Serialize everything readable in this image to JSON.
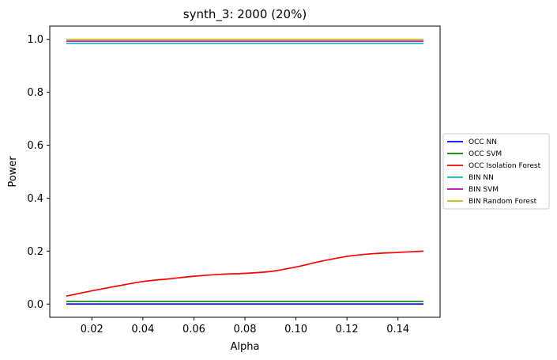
{
  "chart_data": {
    "type": "line",
    "title": "synth_3: 2000 (20%)",
    "xlabel": "Alpha",
    "ylabel": "Power",
    "xlim": [
      0.0035,
      0.1565
    ],
    "ylim": [
      -0.05,
      1.05
    ],
    "xticks": [
      0.02,
      0.04,
      0.06,
      0.08,
      0.1,
      0.12,
      0.14
    ],
    "xtick_labels": [
      "0.02",
      "0.04",
      "0.06",
      "0.08",
      "0.10",
      "0.12",
      "0.14"
    ],
    "yticks": [
      0.0,
      0.2,
      0.4,
      0.6,
      0.8,
      1.0
    ],
    "ytick_labels": [
      "0.0",
      "0.2",
      "0.4",
      "0.6",
      "0.8",
      "1.0"
    ],
    "grid": false,
    "legend_position": "center-right outside",
    "x": [
      0.01,
      0.02,
      0.03,
      0.04,
      0.05,
      0.06,
      0.07,
      0.08,
      0.09,
      0.1,
      0.11,
      0.12,
      0.13,
      0.14,
      0.15
    ],
    "series": [
      {
        "name": "OCC NN",
        "color": "#0000ff",
        "values": [
          0.0,
          0.0,
          0.0,
          0.0,
          0.0,
          0.0,
          0.0,
          0.0,
          0.0,
          0.0,
          0.0,
          0.0,
          0.0,
          0.0,
          0.0
        ]
      },
      {
        "name": "OCC SVM",
        "color": "#008000",
        "values": [
          0.01,
          0.01,
          0.01,
          0.01,
          0.01,
          0.01,
          0.01,
          0.01,
          0.01,
          0.01,
          0.01,
          0.01,
          0.01,
          0.01,
          0.01
        ]
      },
      {
        "name": "OCC Isolation Forest",
        "color": "#ff0000",
        "values": [
          0.03,
          0.05,
          0.068,
          0.085,
          0.095,
          0.105,
          0.112,
          0.116,
          0.123,
          0.14,
          0.162,
          0.18,
          0.19,
          0.195,
          0.2
        ]
      },
      {
        "name": "BIN NN",
        "color": "#00bfbf",
        "values": [
          0.985,
          0.985,
          0.985,
          0.985,
          0.985,
          0.985,
          0.985,
          0.985,
          0.985,
          0.985,
          0.985,
          0.985,
          0.985,
          0.985,
          0.985
        ]
      },
      {
        "name": "BIN SVM",
        "color": "#bf00bf",
        "values": [
          0.993,
          0.993,
          0.993,
          0.993,
          0.993,
          0.993,
          0.993,
          0.993,
          0.993,
          0.993,
          0.993,
          0.993,
          0.993,
          0.993,
          0.993
        ]
      },
      {
        "name": "BIN Random Forest",
        "color": "#bfbf00",
        "values": [
          1.0,
          1.0,
          1.0,
          1.0,
          1.0,
          1.0,
          1.0,
          1.0,
          1.0,
          1.0,
          1.0,
          1.0,
          1.0,
          1.0,
          1.0
        ]
      }
    ]
  }
}
